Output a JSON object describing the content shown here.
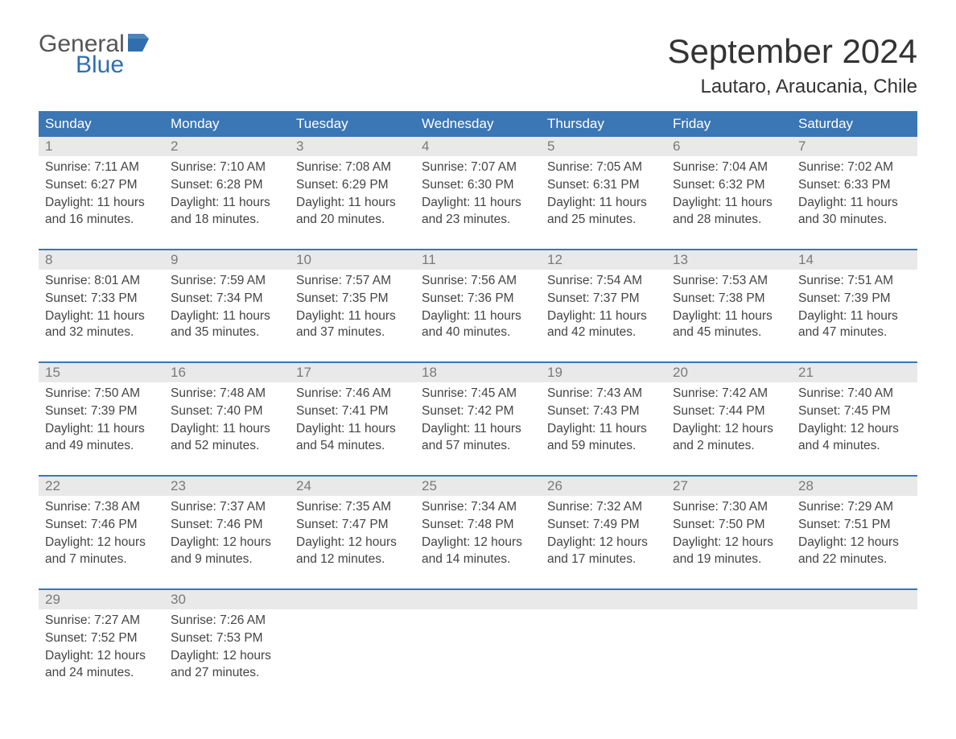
{
  "logo": {
    "word1": "General",
    "word2": "Blue",
    "flag_color": "#2f6fb0"
  },
  "title": {
    "month": "September 2024",
    "location": "Lautaro, Araucania, Chile"
  },
  "colors": {
    "header_bg": "#3b76b5",
    "header_text": "#ffffff",
    "daynum_bg": "#e9e9e9",
    "daynum_text": "#7a7a7a",
    "body_text": "#444444",
    "rule": "#3b76b5"
  },
  "daysOfWeek": [
    "Sunday",
    "Monday",
    "Tuesday",
    "Wednesday",
    "Thursday",
    "Friday",
    "Saturday"
  ],
  "labels": {
    "sunrise": "Sunrise:",
    "sunset": "Sunset:",
    "daylight": "Daylight:"
  },
  "weeks": [
    [
      {
        "num": "1",
        "sunrise": "7:11 AM",
        "sunset": "6:27 PM",
        "daylight": "11 hours and 16 minutes."
      },
      {
        "num": "2",
        "sunrise": "7:10 AM",
        "sunset": "6:28 PM",
        "daylight": "11 hours and 18 minutes."
      },
      {
        "num": "3",
        "sunrise": "7:08 AM",
        "sunset": "6:29 PM",
        "daylight": "11 hours and 20 minutes."
      },
      {
        "num": "4",
        "sunrise": "7:07 AM",
        "sunset": "6:30 PM",
        "daylight": "11 hours and 23 minutes."
      },
      {
        "num": "5",
        "sunrise": "7:05 AM",
        "sunset": "6:31 PM",
        "daylight": "11 hours and 25 minutes."
      },
      {
        "num": "6",
        "sunrise": "7:04 AM",
        "sunset": "6:32 PM",
        "daylight": "11 hours and 28 minutes."
      },
      {
        "num": "7",
        "sunrise": "7:02 AM",
        "sunset": "6:33 PM",
        "daylight": "11 hours and 30 minutes."
      }
    ],
    [
      {
        "num": "8",
        "sunrise": "8:01 AM",
        "sunset": "7:33 PM",
        "daylight": "11 hours and 32 minutes."
      },
      {
        "num": "9",
        "sunrise": "7:59 AM",
        "sunset": "7:34 PM",
        "daylight": "11 hours and 35 minutes."
      },
      {
        "num": "10",
        "sunrise": "7:57 AM",
        "sunset": "7:35 PM",
        "daylight": "11 hours and 37 minutes."
      },
      {
        "num": "11",
        "sunrise": "7:56 AM",
        "sunset": "7:36 PM",
        "daylight": "11 hours and 40 minutes."
      },
      {
        "num": "12",
        "sunrise": "7:54 AM",
        "sunset": "7:37 PM",
        "daylight": "11 hours and 42 minutes."
      },
      {
        "num": "13",
        "sunrise": "7:53 AM",
        "sunset": "7:38 PM",
        "daylight": "11 hours and 45 minutes."
      },
      {
        "num": "14",
        "sunrise": "7:51 AM",
        "sunset": "7:39 PM",
        "daylight": "11 hours and 47 minutes."
      }
    ],
    [
      {
        "num": "15",
        "sunrise": "7:50 AM",
        "sunset": "7:39 PM",
        "daylight": "11 hours and 49 minutes."
      },
      {
        "num": "16",
        "sunrise": "7:48 AM",
        "sunset": "7:40 PM",
        "daylight": "11 hours and 52 minutes."
      },
      {
        "num": "17",
        "sunrise": "7:46 AM",
        "sunset": "7:41 PM",
        "daylight": "11 hours and 54 minutes."
      },
      {
        "num": "18",
        "sunrise": "7:45 AM",
        "sunset": "7:42 PM",
        "daylight": "11 hours and 57 minutes."
      },
      {
        "num": "19",
        "sunrise": "7:43 AM",
        "sunset": "7:43 PM",
        "daylight": "11 hours and 59 minutes."
      },
      {
        "num": "20",
        "sunrise": "7:42 AM",
        "sunset": "7:44 PM",
        "daylight": "12 hours and 2 minutes."
      },
      {
        "num": "21",
        "sunrise": "7:40 AM",
        "sunset": "7:45 PM",
        "daylight": "12 hours and 4 minutes."
      }
    ],
    [
      {
        "num": "22",
        "sunrise": "7:38 AM",
        "sunset": "7:46 PM",
        "daylight": "12 hours and 7 minutes."
      },
      {
        "num": "23",
        "sunrise": "7:37 AM",
        "sunset": "7:46 PM",
        "daylight": "12 hours and 9 minutes."
      },
      {
        "num": "24",
        "sunrise": "7:35 AM",
        "sunset": "7:47 PM",
        "daylight": "12 hours and 12 minutes."
      },
      {
        "num": "25",
        "sunrise": "7:34 AM",
        "sunset": "7:48 PM",
        "daylight": "12 hours and 14 minutes."
      },
      {
        "num": "26",
        "sunrise": "7:32 AM",
        "sunset": "7:49 PM",
        "daylight": "12 hours and 17 minutes."
      },
      {
        "num": "27",
        "sunrise": "7:30 AM",
        "sunset": "7:50 PM",
        "daylight": "12 hours and 19 minutes."
      },
      {
        "num": "28",
        "sunrise": "7:29 AM",
        "sunset": "7:51 PM",
        "daylight": "12 hours and 22 minutes."
      }
    ],
    [
      {
        "num": "29",
        "sunrise": "7:27 AM",
        "sunset": "7:52 PM",
        "daylight": "12 hours and 24 minutes."
      },
      {
        "num": "30",
        "sunrise": "7:26 AM",
        "sunset": "7:53 PM",
        "daylight": "12 hours and 27 minutes."
      },
      {
        "empty": true
      },
      {
        "empty": true
      },
      {
        "empty": true
      },
      {
        "empty": true
      },
      {
        "empty": true
      }
    ]
  ]
}
